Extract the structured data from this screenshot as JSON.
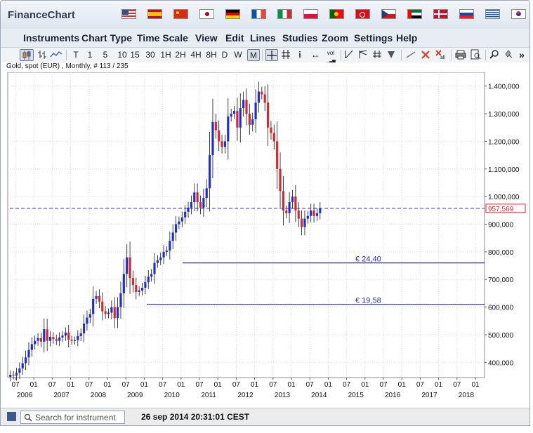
{
  "app": {
    "title": "FinanceChart"
  },
  "flags": [
    "us-flag",
    "es-flag",
    "cn-flag",
    "jp-flag",
    "de-flag",
    "fr-flag",
    "it-flag",
    "pl-flag",
    "pt-flag",
    "tr-flag",
    "cz-flag",
    "ae-flag",
    "dk-flag",
    "sk-flag",
    "gr-flag",
    "kr-flag"
  ],
  "menu": {
    "instruments": "Instruments",
    "chart_type": "Chart Type",
    "time_scale": "Time Scale",
    "view": "View",
    "edit": "Edit",
    "lines": "Lines",
    "studies": "Studies",
    "zoom": "Zoom",
    "settings": "Settings",
    "help": "Help"
  },
  "toolbar": {
    "candle": "candle-icon",
    "bars": "ohlc-bar-icon",
    "line": "line-icon",
    "timeframes": [
      "T",
      "1",
      "5",
      "10",
      "15",
      "30",
      "1H",
      "2H",
      "4H",
      "8H",
      "D",
      "W",
      "M"
    ],
    "selected_timeframe": "M",
    "crosshair": "crosshair-icon",
    "grid": "grid-icon",
    "info": "i",
    "arrows": "↔",
    "vol": "vol",
    "more": "»"
  },
  "info": {
    "text": "Gold, spot (EUR) , Monthly, # 113 / 235"
  },
  "chart_data": {
    "type": "candlestick",
    "title": "Gold, spot (EUR) , Monthly, # 113 / 235",
    "ylim": [
      345000,
      1450000
    ],
    "y_ticks": [
      {
        "v": 400000,
        "t": "400,000"
      },
      {
        "v": 500000,
        "t": "500,000"
      },
      {
        "v": 600000,
        "t": "600,000"
      },
      {
        "v": 700000,
        "t": "700,000"
      },
      {
        "v": 800000,
        "t": "800,000"
      },
      {
        "v": 900000,
        "t": "900,000"
      },
      {
        "v": 1000000,
        "t": "1.000,000"
      },
      {
        "v": 1100000,
        "t": "1.100,000"
      },
      {
        "v": 1200000,
        "t": "1.200,000"
      },
      {
        "v": 1300000,
        "t": "1.300,000"
      },
      {
        "v": 1400000,
        "t": "1.400,000"
      }
    ],
    "x_month_ticks": [
      "07",
      "01",
      "07",
      "01",
      "07",
      "01",
      "07",
      "01",
      "07",
      "01",
      "07",
      "01",
      "07",
      "01",
      "07",
      "01",
      "07",
      "01",
      "07",
      "01",
      "07",
      "01",
      "07",
      "01",
      "07",
      "01"
    ],
    "x_year_ticks": [
      "2006",
      "2007",
      "2008",
      "2009",
      "2010",
      "2011",
      "2012",
      "2013",
      "2014",
      "2015",
      "2016",
      "2017",
      "2018"
    ],
    "current_price": {
      "value": 957569,
      "label": "957,569"
    },
    "levels": [
      {
        "value": 760000,
        "label": "€ 24,40"
      },
      {
        "value": 610000,
        "label": "€ 19,58"
      }
    ],
    "monthly_close": [
      355000,
      352000,
      362000,
      378000,
      397000,
      418000,
      445000,
      466000,
      478000,
      488000,
      475000,
      520000,
      478000,
      492000,
      484000,
      478000,
      490000,
      497000,
      508000,
      482000,
      478000,
      480000,
      495000,
      505000,
      540000,
      562000,
      575000,
      630000,
      640000,
      620000,
      585000,
      575000,
      580000,
      600000,
      560000,
      600000,
      650000,
      720000,
      780000,
      705000,
      680000,
      655000,
      660000,
      670000,
      690000,
      710000,
      720000,
      760000,
      770000,
      780000,
      800000,
      805000,
      840000,
      870000,
      900000,
      910000,
      925000,
      945000,
      960000,
      980000,
      1015000,
      980000,
      960000,
      995000,
      1030000,
      1150000,
      1270000,
      1240000,
      1200000,
      1180000,
      1200000,
      1290000,
      1300000,
      1310000,
      1250000,
      1320000,
      1350000,
      1300000,
      1260000,
      1280000,
      1340000,
      1380000,
      1370000,
      1340000,
      1250000,
      1230000,
      1200000,
      1100000,
      1020000,
      950000,
      940000,
      980000,
      1000000,
      950000,
      920000,
      890000,
      920000,
      930000,
      950000,
      930000,
      940000,
      957569
    ]
  },
  "status": {
    "search_placeholder": "Search for instrument",
    "datetime": "26 sep 2014 20:31:01 CEST"
  }
}
